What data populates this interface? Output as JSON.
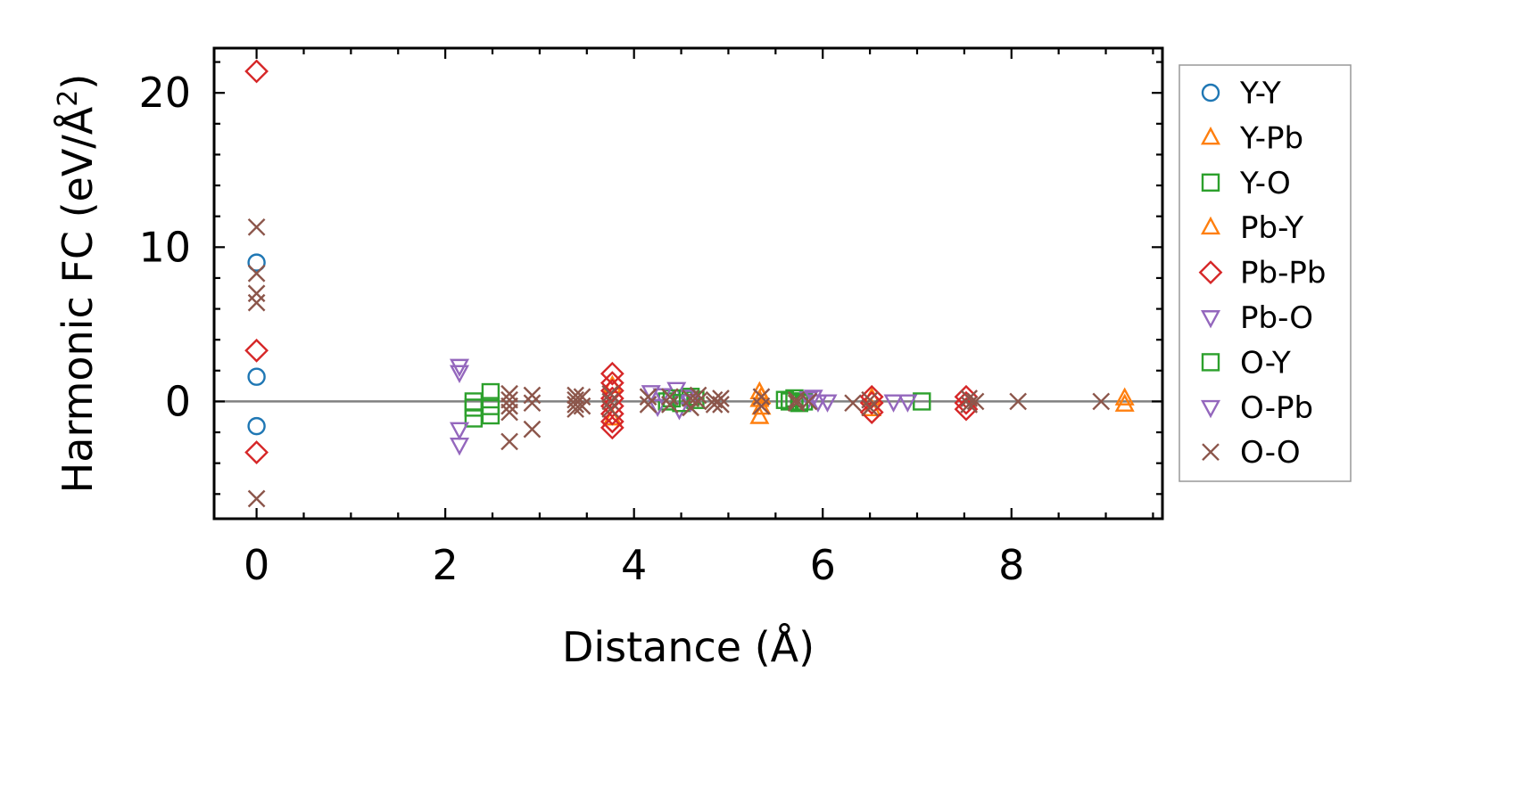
{
  "chart_data": {
    "type": "scatter",
    "xlabel": "Distance (Å)",
    "ylabel_main": "Harmonic FC (eV/Å",
    "ylabel_sup": "2",
    "ylabel_close": ")",
    "xlim": [
      -0.45,
      9.6
    ],
    "ylim": [
      -7.6,
      22.9
    ],
    "xticks": [
      0,
      2,
      4,
      6,
      8
    ],
    "xtick_labels": [
      "0",
      "2",
      "4",
      "6",
      "8"
    ],
    "yticks": [
      0,
      10,
      20
    ],
    "ytick_labels": [
      "0",
      "10",
      "20"
    ],
    "grid": false,
    "reference_line_y": 0,
    "legend_position": "outside right",
    "series": [
      {
        "name": "Y-Y",
        "marker": "circle",
        "color": "#1f77b4",
        "points": [
          [
            0,
            9.0
          ],
          [
            0,
            1.6
          ],
          [
            0,
            -1.6
          ]
        ]
      },
      {
        "name": "Y-Pb",
        "marker": "triangle-up",
        "color": "#ff7f0e",
        "points": [
          [
            5.33,
            0.6
          ],
          [
            5.33,
            -1.0
          ],
          [
            5.33,
            0.1
          ],
          [
            9.2,
            -0.2
          ],
          [
            9.2,
            0.2
          ]
        ]
      },
      {
        "name": "Y-O",
        "marker": "square",
        "color": "#2ca02c",
        "points": [
          [
            2.3,
            -0.4
          ],
          [
            2.3,
            -1.1
          ],
          [
            2.3,
            0.0
          ],
          [
            2.48,
            0.6
          ],
          [
            2.48,
            -0.9
          ],
          [
            2.48,
            -0.3
          ],
          [
            4.35,
            0.0
          ],
          [
            4.6,
            0.3
          ],
          [
            4.65,
            0.1
          ],
          [
            5.65,
            0.0
          ],
          [
            5.7,
            0.2
          ],
          [
            5.8,
            0.0
          ],
          [
            7.05,
            0.0
          ]
        ]
      },
      {
        "name": "Pb-Y",
        "marker": "triangle-up",
        "color": "#ff7f0e",
        "points": [
          [
            3.77,
            1.0
          ],
          [
            3.77,
            -1.1
          ],
          [
            5.35,
            0.3
          ],
          [
            5.35,
            -0.4
          ],
          [
            6.52,
            -0.5
          ],
          [
            6.52,
            0.2
          ]
        ]
      },
      {
        "name": "Pb-Pb",
        "marker": "diamond",
        "color": "#d62728",
        "points": [
          [
            0,
            21.4
          ],
          [
            0,
            3.3
          ],
          [
            0,
            -3.3
          ],
          [
            3.77,
            1.8
          ],
          [
            3.77,
            1.2
          ],
          [
            3.77,
            0.7
          ],
          [
            3.77,
            0.2
          ],
          [
            3.77,
            -0.3
          ],
          [
            3.77,
            -0.8
          ],
          [
            3.77,
            -1.3
          ],
          [
            3.77,
            -1.7
          ],
          [
            6.52,
            0.3
          ],
          [
            6.52,
            -0.1
          ],
          [
            6.52,
            -0.7
          ],
          [
            7.52,
            0.3
          ],
          [
            7.52,
            -0.1
          ],
          [
            7.52,
            -0.5
          ]
        ]
      },
      {
        "name": "Pb-O",
        "marker": "triangle-down",
        "color": "#9467bd",
        "points": [
          [
            2.15,
            2.3
          ],
          [
            2.15,
            1.9
          ],
          [
            2.15,
            -1.8
          ],
          [
            2.15,
            -2.8
          ],
          [
            4.18,
            0.6
          ],
          [
            4.25,
            -0.3
          ],
          [
            4.45,
            0.8
          ],
          [
            4.48,
            -0.5
          ],
          [
            4.55,
            0.3
          ],
          [
            5.85,
            0.2
          ],
          [
            5.95,
            0.0
          ],
          [
            6.75,
            0.0
          ],
          [
            6.9,
            0.0
          ]
        ]
      },
      {
        "name": "O-Y",
        "marker": "square",
        "color": "#2ca02c",
        "points": [
          [
            4.4,
            0.2
          ],
          [
            4.5,
            -0.1
          ],
          [
            5.6,
            0.1
          ],
          [
            5.75,
            -0.1
          ]
        ]
      },
      {
        "name": "O-Pb",
        "marker": "triangle-down",
        "color": "#9467bd",
        "points": [
          [
            4.3,
            0.4
          ],
          [
            4.6,
            0.0
          ],
          [
            5.9,
            0.3
          ],
          [
            6.05,
            0.0
          ]
        ]
      },
      {
        "name": "O-O",
        "marker": "x",
        "color": "#8c564b",
        "points": [
          [
            0,
            11.3
          ],
          [
            0,
            8.3
          ],
          [
            0,
            7.0
          ],
          [
            0,
            6.4
          ],
          [
            0,
            -6.3
          ],
          [
            2.68,
            0.5
          ],
          [
            2.68,
            0.1
          ],
          [
            2.68,
            -0.3
          ],
          [
            2.68,
            -0.7
          ],
          [
            2.68,
            -2.6
          ],
          [
            2.92,
            0.4
          ],
          [
            2.92,
            -0.1
          ],
          [
            2.92,
            -1.8
          ],
          [
            3.38,
            0.4
          ],
          [
            3.38,
            0.1
          ],
          [
            3.38,
            -0.2
          ],
          [
            3.38,
            -0.5
          ],
          [
            3.45,
            0.3
          ],
          [
            3.45,
            -0.3
          ],
          [
            3.75,
            0.5
          ],
          [
            3.75,
            0.0
          ],
          [
            3.75,
            -0.5
          ],
          [
            4.15,
            0.3
          ],
          [
            4.15,
            -0.2
          ],
          [
            4.38,
            0.3
          ],
          [
            4.38,
            -0.2
          ],
          [
            4.6,
            0.2
          ],
          [
            4.6,
            -0.4
          ],
          [
            4.68,
            0.4
          ],
          [
            4.68,
            0.0
          ],
          [
            4.85,
            0.1
          ],
          [
            4.85,
            -0.2
          ],
          [
            4.92,
            0.2
          ],
          [
            4.92,
            -0.2
          ],
          [
            5.35,
            0.3
          ],
          [
            5.35,
            -0.3
          ],
          [
            5.72,
            0.1
          ],
          [
            5.72,
            -0.1
          ],
          [
            5.85,
            0.0
          ],
          [
            6.32,
            -0.1
          ],
          [
            6.5,
            0.1
          ],
          [
            6.5,
            -0.4
          ],
          [
            7.55,
            0.2
          ],
          [
            7.55,
            -0.2
          ],
          [
            7.62,
            0.0
          ],
          [
            8.07,
            0.0
          ],
          [
            8.95,
            0.0
          ]
        ]
      }
    ]
  }
}
